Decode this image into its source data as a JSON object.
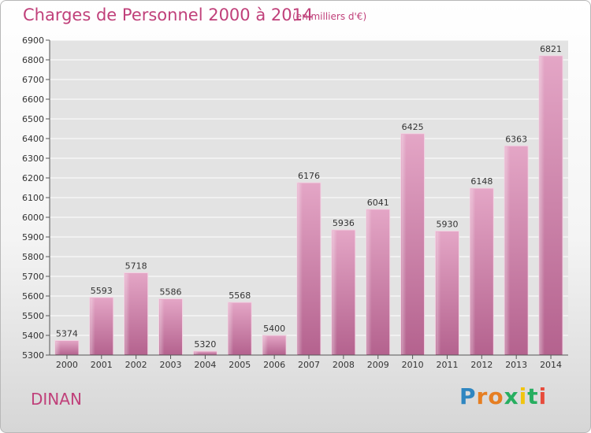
{
  "header": {
    "title": "Charges de Personnel 2000 à 2014",
    "subtitle": "(en milliers d'€)"
  },
  "footer": {
    "town": "DINAN",
    "brand": "Proxiti",
    "brand_colors": [
      "#2e86c1",
      "#e67e22",
      "#e67e22",
      "#27ae60",
      "#f1c40f",
      "#27ae60",
      "#e74c3c"
    ]
  },
  "chart_data": {
    "type": "bar",
    "categories": [
      "2000",
      "2001",
      "2002",
      "2003",
      "2004",
      "2005",
      "2006",
      "2007",
      "2008",
      "2009",
      "2010",
      "2011",
      "2012",
      "2013",
      "2014"
    ],
    "values": [
      5374,
      5593,
      5718,
      5586,
      5320,
      5568,
      5400,
      6176,
      5936,
      6041,
      6425,
      5930,
      6148,
      6363,
      6821
    ],
    "ylim": [
      5300,
      6900
    ],
    "yticks": [
      5300,
      5400,
      5500,
      5600,
      5700,
      5800,
      5900,
      6000,
      6100,
      6200,
      6300,
      6400,
      6500,
      6600,
      6700,
      6800,
      6900
    ],
    "grid": true,
    "bar_color": "#c25a8e"
  }
}
